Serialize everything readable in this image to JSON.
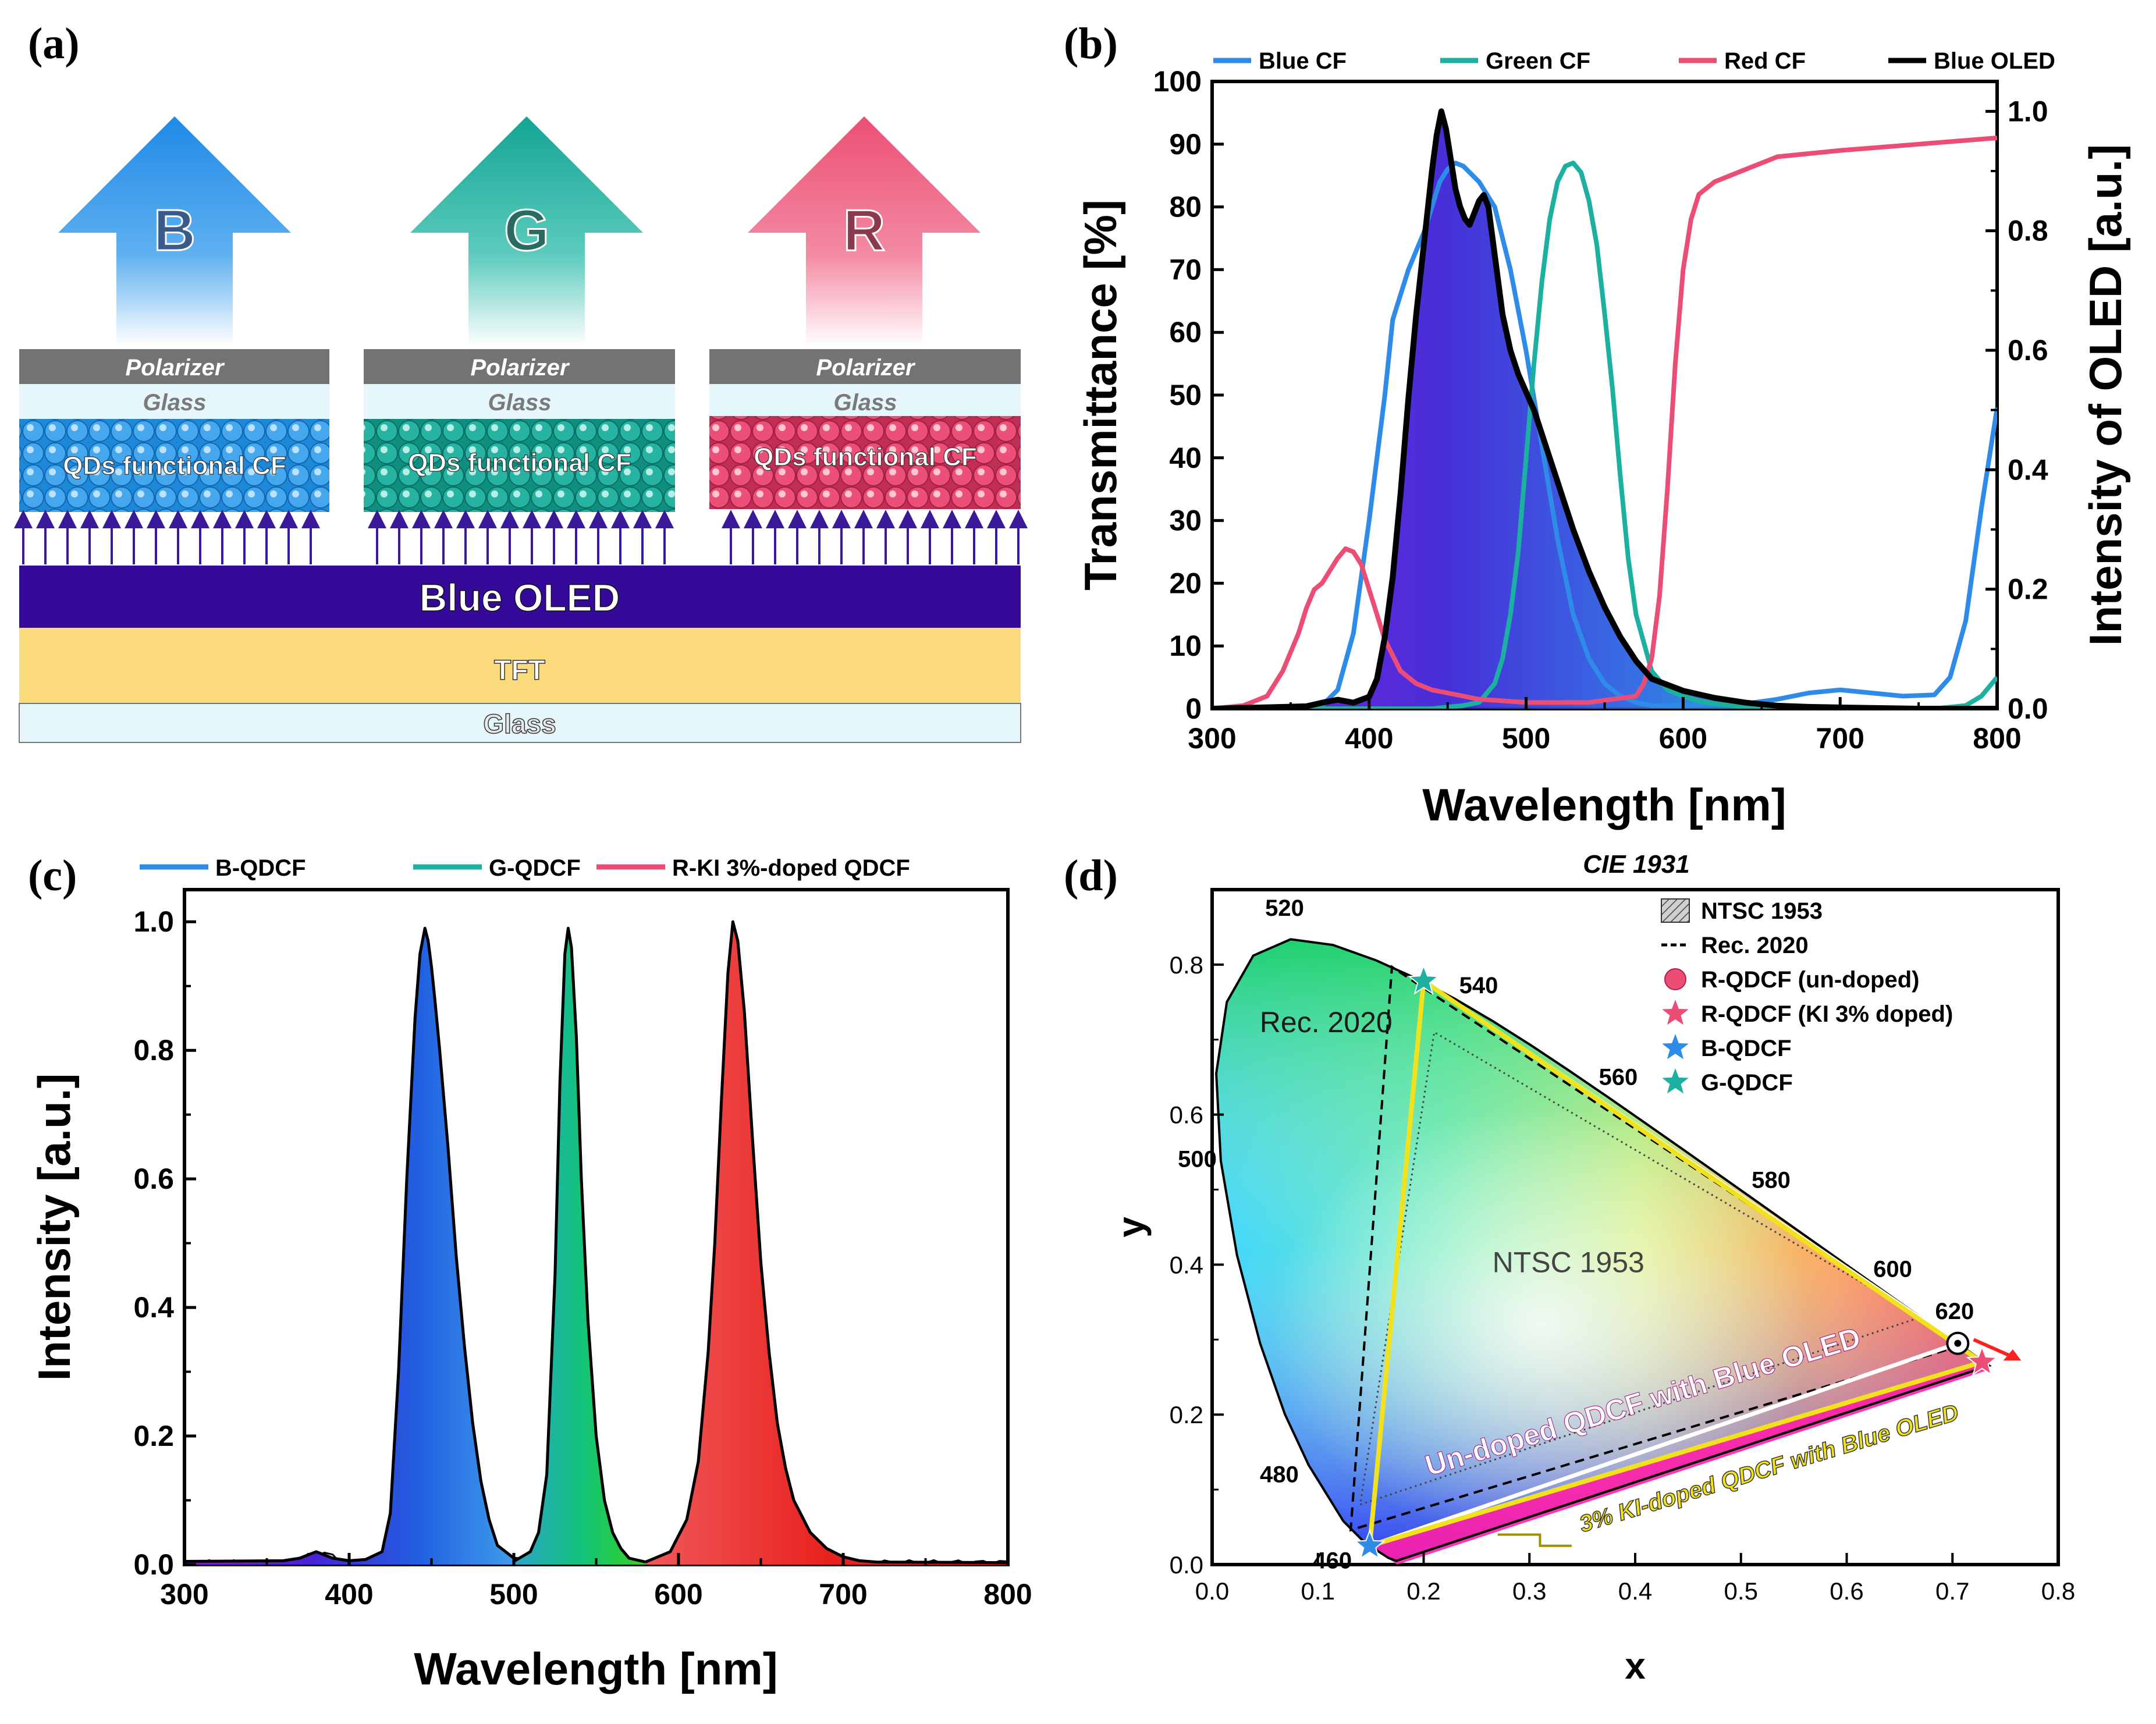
{
  "panels": {
    "a": "(a)",
    "b": "(b)",
    "c": "(c)",
    "d": "(d)"
  },
  "colors": {
    "blue": "#2f8be8",
    "green": "#1bb0a0",
    "red": "#ec4d75",
    "black": "#000000",
    "oled": "#350a9a",
    "tft": "#fada7a",
    "glass": "#e5f7fb",
    "yellow": "#f2e21c"
  },
  "diagram": {
    "arrows": [
      "B",
      "G",
      "R"
    ],
    "polarizer": "Polarizer",
    "glass": "Glass",
    "qd": "QDs functional CF",
    "oled": "Blue OLED",
    "tft": "TFT",
    "bottom_glass": "Glass"
  },
  "chart_data": [
    {
      "panel": "b",
      "type": "line",
      "xlabel": "Wavelength [nm]",
      "ylabel": "Transmittance [%]",
      "y2label": "Intensity of OLED [a.u.]",
      "xlim": [
        300,
        800
      ],
      "ylim": [
        0,
        100
      ],
      "y2lim": [
        0,
        1.05
      ],
      "xticks": [
        300,
        400,
        500,
        600,
        700,
        800
      ],
      "yticks": [
        0,
        10,
        20,
        30,
        40,
        50,
        60,
        70,
        80,
        90,
        100
      ],
      "y2ticks": [
        0.0,
        0.2,
        0.4,
        0.6,
        0.8,
        1.0
      ],
      "legend": [
        "Blue CF",
        "Green CF",
        "Red CF",
        "Blue OLED"
      ],
      "series": [
        {
          "name": "Blue CF",
          "axis": "left",
          "x": [
            300,
            350,
            370,
            380,
            390,
            400,
            410,
            415,
            420,
            425,
            430,
            435,
            440,
            445,
            450,
            455,
            460,
            470,
            480,
            490,
            500,
            510,
            520,
            530,
            540,
            550,
            560,
            570,
            580,
            600,
            640,
            660,
            680,
            700,
            720,
            740,
            760,
            770,
            780,
            790,
            800
          ],
          "y": [
            0,
            0,
            0.5,
            3,
            12,
            30,
            50,
            62,
            66,
            70,
            73,
            76,
            80,
            84,
            86,
            87,
            86.5,
            84,
            80,
            70,
            57,
            42,
            27,
            15,
            8,
            4,
            2,
            1,
            0.5,
            0.5,
            0.8,
            1.5,
            2.5,
            3,
            2.5,
            2,
            2.2,
            5,
            14,
            32,
            48
          ]
        },
        {
          "name": "Green CF",
          "axis": "left",
          "x": [
            300,
            440,
            460,
            470,
            480,
            485,
            490,
            495,
            500,
            505,
            510,
            515,
            520,
            525,
            530,
            535,
            540,
            545,
            550,
            555,
            560,
            565,
            570,
            580,
            590,
            600,
            610,
            620,
            640,
            660,
            700,
            760,
            780,
            790,
            800
          ],
          "y": [
            0,
            0,
            0.5,
            1,
            4,
            8,
            15,
            25,
            40,
            55,
            68,
            78,
            84,
            86.5,
            87,
            85.5,
            81,
            74,
            63,
            51,
            37,
            24,
            15,
            6,
            3,
            2,
            1.2,
            0.8,
            0.3,
            0.1,
            0,
            0,
            0.5,
            2,
            5
          ]
        },
        {
          "name": "Red CF",
          "axis": "left",
          "x": [
            300,
            320,
            335,
            345,
            355,
            360,
            365,
            370,
            375,
            380,
            385,
            390,
            395,
            400,
            405,
            410,
            420,
            430,
            440,
            450,
            470,
            500,
            540,
            570,
            575,
            580,
            585,
            590,
            595,
            600,
            605,
            610,
            620,
            640,
            660,
            700,
            750,
            800
          ],
          "y": [
            0,
            0.5,
            2,
            6,
            12,
            16,
            19,
            20,
            22,
            24,
            25.5,
            25,
            23,
            19,
            15,
            11,
            6,
            4,
            3,
            2.5,
            1.5,
            1,
            1,
            2,
            4,
            8,
            18,
            35,
            55,
            70,
            78,
            82,
            84,
            86,
            88,
            89,
            90,
            91
          ]
        },
        {
          "name": "Blue OLED",
          "axis": "right",
          "x": [
            300,
            360,
            370,
            380,
            390,
            395,
            400,
            405,
            410,
            415,
            420,
            425,
            430,
            435,
            440,
            443,
            446,
            449,
            452,
            455,
            458,
            461,
            464,
            467,
            470,
            473,
            476,
            479,
            482,
            485,
            490,
            495,
            500,
            505,
            510,
            520,
            530,
            540,
            550,
            560,
            570,
            580,
            600,
            620,
            640,
            660,
            680,
            700,
            750,
            800
          ],
          "y": [
            0,
            0.004,
            0.01,
            0.015,
            0.01,
            0.015,
            0.02,
            0.05,
            0.12,
            0.22,
            0.36,
            0.52,
            0.66,
            0.78,
            0.9,
            0.96,
            1.0,
            0.97,
            0.92,
            0.87,
            0.84,
            0.82,
            0.81,
            0.83,
            0.85,
            0.86,
            0.84,
            0.78,
            0.72,
            0.66,
            0.6,
            0.56,
            0.53,
            0.5,
            0.46,
            0.38,
            0.3,
            0.23,
            0.17,
            0.12,
            0.08,
            0.05,
            0.03,
            0.018,
            0.01,
            0.005,
            0.003,
            0.002,
            0,
            0
          ]
        }
      ]
    },
    {
      "panel": "c",
      "type": "area",
      "xlabel": "Wavelength [nm]",
      "ylabel": "Intensity [a.u.]",
      "xlim": [
        300,
        800
      ],
      "ylim": [
        0,
        1.05
      ],
      "xticks": [
        300,
        400,
        500,
        600,
        700,
        800
      ],
      "yticks": [
        0.0,
        0.2,
        0.4,
        0.6,
        0.8,
        1.0
      ],
      "legend": [
        "B-QDCF",
        "G-QDCF",
        "R-KI 3%-doped QDCF"
      ],
      "series": [
        {
          "name": "B-QDCF",
          "x": [
            300,
            360,
            370,
            380,
            390,
            400,
            410,
            420,
            425,
            430,
            435,
            440,
            443,
            446,
            448,
            450,
            452,
            455,
            460,
            465,
            470,
            475,
            480,
            485,
            490,
            500,
            520
          ],
          "y": [
            0.005,
            0.006,
            0.01,
            0.02,
            0.01,
            0.006,
            0.008,
            0.02,
            0.08,
            0.3,
            0.6,
            0.85,
            0.95,
            0.99,
            0.97,
            0.93,
            0.88,
            0.8,
            0.65,
            0.48,
            0.34,
            0.22,
            0.13,
            0.07,
            0.03,
            0.01,
            0.004
          ]
        },
        {
          "name": "G-QDCF",
          "x": [
            500,
            510,
            515,
            520,
            525,
            528,
            531,
            533,
            535,
            538,
            541,
            545,
            550,
            555,
            560,
            565,
            570,
            580
          ],
          "y": [
            0.005,
            0.02,
            0.05,
            0.14,
            0.45,
            0.75,
            0.95,
            0.99,
            0.96,
            0.82,
            0.6,
            0.38,
            0.2,
            0.1,
            0.05,
            0.025,
            0.01,
            0.004
          ]
        },
        {
          "name": "R-KI 3%-doped QDCF",
          "x": [
            580,
            595,
            605,
            612,
            618,
            622,
            626,
            630,
            633,
            636,
            640,
            645,
            650,
            655,
            660,
            665,
            670,
            680,
            690,
            700,
            710,
            720,
            800
          ],
          "y": [
            0.004,
            0.02,
            0.07,
            0.16,
            0.33,
            0.5,
            0.72,
            0.92,
            1.0,
            0.97,
            0.86,
            0.66,
            0.47,
            0.33,
            0.22,
            0.15,
            0.1,
            0.05,
            0.025,
            0.012,
            0.006,
            0.004,
            0.003
          ]
        }
      ]
    },
    {
      "panel": "d",
      "type": "scatter",
      "title": "CIE 1931",
      "xlabel": "x",
      "ylabel": "y",
      "xlim": [
        0,
        0.8
      ],
      "ylim": [
        0,
        0.9
      ],
      "xticks": [
        0.0,
        0.1,
        0.2,
        0.3,
        0.4,
        0.5,
        0.6,
        0.7,
        0.8
      ],
      "yticks": [
        0.0,
        0.2,
        0.4,
        0.6,
        0.8
      ],
      "locus": [
        [
          0.1741,
          0.005
        ],
        [
          0.1666,
          0.0089
        ],
        [
          0.144,
          0.0297
        ],
        [
          0.1241,
          0.0578
        ],
        [
          0.0913,
          0.1327
        ],
        [
          0.0687,
          0.2007
        ],
        [
          0.0454,
          0.295
        ],
        [
          0.0235,
          0.4127
        ],
        [
          0.0082,
          0.5384
        ],
        [
          0.0039,
          0.6548
        ],
        [
          0.0139,
          0.7502
        ],
        [
          0.0389,
          0.812
        ],
        [
          0.0743,
          0.8338
        ],
        [
          0.1142,
          0.8262
        ],
        [
          0.1547,
          0.8059
        ],
        [
          0.1929,
          0.7816
        ],
        [
          0.2296,
          0.7543
        ],
        [
          0.2658,
          0.7243
        ],
        [
          0.3016,
          0.6923
        ],
        [
          0.3373,
          0.6589
        ],
        [
          0.3731,
          0.6245
        ],
        [
          0.4087,
          0.5896
        ],
        [
          0.4441,
          0.5547
        ],
        [
          0.4788,
          0.5202
        ],
        [
          0.5125,
          0.4866
        ],
        [
          0.5448,
          0.4544
        ],
        [
          0.5752,
          0.4242
        ],
        [
          0.6029,
          0.3965
        ],
        [
          0.627,
          0.3725
        ],
        [
          0.6482,
          0.3514
        ],
        [
          0.6658,
          0.334
        ],
        [
          0.6915,
          0.3083
        ],
        [
          0.7347,
          0.2653
        ],
        [
          0.1741,
          0.005
        ]
      ],
      "wavelength_labels": [
        {
          "text": "520",
          "x": 0.074,
          "y": 0.834
        },
        {
          "text": "540",
          "x": 0.23,
          "y": 0.754
        },
        {
          "text": "560",
          "x": 0.373,
          "y": 0.624
        },
        {
          "text": "580",
          "x": 0.512,
          "y": 0.487
        },
        {
          "text": "600",
          "x": 0.627,
          "y": 0.372
        },
        {
          "text": "620",
          "x": 0.691,
          "y": 0.308
        },
        {
          "text": "500",
          "x": 0.008,
          "y": 0.538
        },
        {
          "text": "480",
          "x": 0.091,
          "y": 0.133
        },
        {
          "text": "460",
          "x": 0.144,
          "y": 0.03
        }
      ],
      "ntsc1953": [
        [
          0.67,
          0.33
        ],
        [
          0.21,
          0.71
        ],
        [
          0.14,
          0.08
        ]
      ],
      "rec2020": [
        [
          0.708,
          0.292
        ],
        [
          0.17,
          0.797
        ],
        [
          0.131,
          0.046
        ]
      ],
      "undoped_triangle": [
        [
          0.705,
          0.295
        ],
        [
          0.2,
          0.778
        ],
        [
          0.149,
          0.025
        ]
      ],
      "doped_triangle": [
        [
          0.728,
          0.27
        ],
        [
          0.2,
          0.778
        ],
        [
          0.149,
          0.025
        ]
      ],
      "points": [
        {
          "name": "R-QDCF (un-doped)",
          "marker": "circle",
          "x": 0.705,
          "y": 0.295
        },
        {
          "name": "R-QDCF (KI 3% doped)",
          "marker": "star",
          "x": 0.728,
          "y": 0.27
        },
        {
          "name": "B-QDCF",
          "marker": "star",
          "x": 0.149,
          "y": 0.025
        },
        {
          "name": "G-QDCF",
          "marker": "star",
          "x": 0.2,
          "y": 0.778
        }
      ],
      "legend": [
        "NTSC 1953",
        "Rec. 2020",
        "R-QDCF (un-doped)",
        "R-QDCF (KI 3% doped)",
        "B-QDCF",
        "G-QDCF"
      ],
      "annotations": [
        "Rec. 2020",
        "NTSC 1953",
        "Un-doped QDCF with Blue OLED",
        "3% KI-doped QDCF with Blue OLED"
      ]
    }
  ]
}
